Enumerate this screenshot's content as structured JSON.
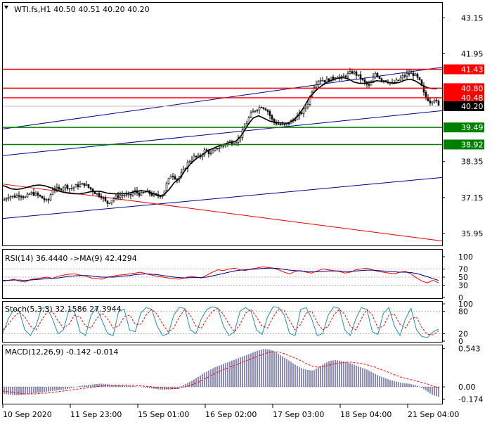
{
  "chart_data": [
    {
      "type": "candlestick",
      "title": "WTI.fs,H1  40.50 40.51 40.20 40.20",
      "quote": {
        "symbol": "WTI.fs,H1",
        "open": 40.5,
        "high": 40.51,
        "low": 40.2,
        "close": 40.2
      },
      "yticks": [
        "43.15",
        "41.95",
        "38.35",
        "37.15",
        "35.95"
      ],
      "ytick_values": [
        43.15,
        41.95,
        38.35,
        37.15,
        35.95
      ],
      "ylim": [
        35.55,
        43.65
      ],
      "levels": [
        {
          "label": "41.43",
          "value": 41.43,
          "color": "#ff0000",
          "kind": "resistance"
        },
        {
          "label": "40.80",
          "value": 40.8,
          "color": "#ff0000",
          "kind": "resistance"
        },
        {
          "label": "40.48",
          "value": 40.48,
          "color": "#ff0000",
          "kind": "resistance"
        },
        {
          "label": "40.20",
          "value": 40.2,
          "color": "#000000",
          "kind": "current"
        },
        {
          "label": "39.49",
          "value": 39.49,
          "color": "#008000",
          "kind": "support"
        },
        {
          "label": "38.92",
          "value": 38.92,
          "color": "#008000",
          "kind": "support"
        }
      ],
      "ma_anchors": [
        [
          0,
          37.58
        ],
        [
          8,
          37.52
        ],
        [
          16,
          37.44
        ],
        [
          24,
          37.42
        ],
        [
          32,
          37.45
        ],
        [
          40,
          37.5
        ],
        [
          48,
          37.55
        ],
        [
          56,
          37.57
        ],
        [
          64,
          37.54
        ],
        [
          72,
          37.48
        ],
        [
          80,
          37.4
        ],
        [
          88,
          37.34
        ],
        [
          96,
          37.3
        ],
        [
          104,
          37.28
        ],
        [
          112,
          37.27
        ],
        [
          120,
          37.3
        ],
        [
          128,
          37.34
        ],
        [
          136,
          37.36
        ],
        [
          144,
          37.35
        ],
        [
          152,
          37.3
        ],
        [
          160,
          37.28
        ],
        [
          168,
          37.27
        ],
        [
          176,
          37.28
        ],
        [
          184,
          37.3
        ],
        [
          192,
          37.35
        ],
        [
          200,
          37.38
        ],
        [
          208,
          37.36
        ],
        [
          216,
          37.3
        ],
        [
          224,
          37.22
        ],
        [
          232,
          37.22
        ],
        [
          240,
          37.4
        ],
        [
          248,
          37.65
        ],
        [
          256,
          37.8
        ],
        [
          264,
          38.08
        ],
        [
          272,
          38.3
        ],
        [
          280,
          38.46
        ],
        [
          288,
          38.58
        ],
        [
          296,
          38.72
        ],
        [
          304,
          38.8
        ],
        [
          312,
          38.88
        ],
        [
          320,
          38.94
        ],
        [
          328,
          38.99
        ],
        [
          336,
          39.04
        ],
        [
          344,
          39.24
        ],
        [
          352,
          39.55
        ],
        [
          360,
          39.8
        ],
        [
          368,
          39.88
        ],
        [
          376,
          39.79
        ],
        [
          384,
          39.7
        ],
        [
          392,
          39.65
        ],
        [
          400,
          39.64
        ],
        [
          408,
          39.63
        ],
        [
          416,
          39.7
        ],
        [
          424,
          39.88
        ],
        [
          432,
          40.15
        ],
        [
          440,
          40.48
        ],
        [
          448,
          40.69
        ],
        [
          456,
          40.85
        ],
        [
          464,
          40.98
        ],
        [
          472,
          41.07
        ],
        [
          480,
          41.13
        ],
        [
          488,
          41.15
        ],
        [
          496,
          41.11
        ],
        [
          504,
          41.0
        ],
        [
          512,
          40.96
        ],
        [
          520,
          40.97
        ],
        [
          528,
          41.0
        ],
        [
          536,
          41.05
        ],
        [
          544,
          41.03
        ],
        [
          552,
          41.0
        ],
        [
          560,
          40.96
        ],
        [
          568,
          40.99
        ],
        [
          576,
          41.07
        ],
        [
          584,
          41.1
        ],
        [
          592,
          41.03
        ],
        [
          600,
          40.91
        ],
        [
          608,
          40.82
        ],
        [
          616,
          40.78
        ]
      ],
      "price_anchors": [
        [
          0,
          37.05
        ],
        [
          6,
          37.08
        ],
        [
          12,
          37.2
        ],
        [
          20,
          37.18
        ],
        [
          28,
          37.25
        ],
        [
          36,
          37.15
        ],
        [
          44,
          37.3
        ],
        [
          52,
          37.25
        ],
        [
          62,
          37.1
        ],
        [
          68,
          37.0
        ],
        [
          76,
          37.5
        ],
        [
          84,
          37.4
        ],
        [
          92,
          37.55
        ],
        [
          100,
          37.45
        ],
        [
          110,
          37.55
        ],
        [
          120,
          37.6
        ],
        [
          128,
          37.45
        ],
        [
          136,
          37.3
        ],
        [
          144,
          37.2
        ],
        [
          152,
          36.95
        ],
        [
          160,
          37.1
        ],
        [
          168,
          37.2
        ],
        [
          176,
          37.25
        ],
        [
          184,
          37.2
        ],
        [
          192,
          37.35
        ],
        [
          200,
          37.25
        ],
        [
          208,
          37.35
        ],
        [
          216,
          37.25
        ],
        [
          224,
          37.2
        ],
        [
          232,
          37.25
        ],
        [
          236,
          37.55
        ],
        [
          244,
          37.95
        ],
        [
          252,
          37.75
        ],
        [
          260,
          38.0
        ],
        [
          268,
          38.35
        ],
        [
          276,
          38.5
        ],
        [
          284,
          38.5
        ],
        [
          292,
          38.75
        ],
        [
          300,
          38.6
        ],
        [
          308,
          38.8
        ],
        [
          316,
          38.85
        ],
        [
          324,
          39.0
        ],
        [
          332,
          38.98
        ],
        [
          340,
          39.1
        ],
        [
          348,
          39.5
        ],
        [
          356,
          39.9
        ],
        [
          364,
          40.1
        ],
        [
          372,
          40.2
        ],
        [
          380,
          40.08
        ],
        [
          388,
          39.7
        ],
        [
          396,
          39.6
        ],
        [
          404,
          39.55
        ],
        [
          412,
          39.65
        ],
        [
          420,
          39.8
        ],
        [
          430,
          40.0
        ],
        [
          438,
          40.3
        ],
        [
          446,
          40.85
        ],
        [
          454,
          41.1
        ],
        [
          462,
          41.05
        ],
        [
          470,
          41.1
        ],
        [
          478,
          41.2
        ],
        [
          486,
          41.15
        ],
        [
          494,
          41.25
        ],
        [
          502,
          41.35
        ],
        [
          510,
          41.2
        ],
        [
          518,
          41.0
        ],
        [
          526,
          40.85
        ],
        [
          534,
          41.3
        ],
        [
          542,
          41.1
        ],
        [
          550,
          41.05
        ],
        [
          558,
          40.95
        ],
        [
          566,
          41.05
        ],
        [
          574,
          41.2
        ],
        [
          582,
          41.3
        ],
        [
          590,
          41.25
        ],
        [
          598,
          41.0
        ],
        [
          604,
          40.55
        ],
        [
          612,
          40.35
        ],
        [
          618,
          40.45
        ],
        [
          624,
          40.2
        ]
      ]
    },
    {
      "type": "line",
      "title": "RSI(14) 36.4440  ->MA(9) 42.4294",
      "yticks": [
        "100",
        "70",
        "50",
        "30",
        "0"
      ],
      "ytick_values": [
        100,
        70,
        50,
        30,
        0
      ],
      "ylim": [
        0,
        100
      ],
      "series": [
        {
          "color": "#ff0000",
          "values": [
            40,
            42,
            45,
            40,
            38,
            44,
            46,
            48,
            50,
            47,
            52,
            55,
            57,
            58,
            55,
            53,
            48,
            46,
            45,
            50,
            52,
            55,
            56,
            58,
            60,
            62,
            58,
            55,
            52,
            50,
            48,
            46,
            45,
            48,
            52,
            50,
            48,
            55,
            62,
            68,
            66,
            70,
            72,
            68,
            66,
            70,
            72,
            75,
            74,
            72,
            68,
            62,
            58,
            64,
            66,
            62,
            60,
            65,
            70,
            68,
            66,
            64,
            60,
            62,
            68,
            70,
            72,
            68,
            64,
            62,
            60,
            58,
            62,
            64,
            58,
            48,
            40,
            36,
            42,
            36
          ]
        },
        {
          "color": "#000080",
          "values": [
            42,
            42,
            43,
            43,
            42,
            43,
            44,
            45,
            46,
            47,
            48,
            50,
            52,
            53,
            54,
            54,
            53,
            51,
            50,
            50,
            50,
            51,
            53,
            54,
            56,
            57,
            58,
            57,
            56,
            54,
            52,
            50,
            49,
            48,
            49,
            49,
            49,
            50,
            53,
            56,
            59,
            62,
            65,
            67,
            68,
            69,
            70,
            71,
            72,
            72,
            71,
            69,
            67,
            66,
            65,
            64,
            63,
            63,
            64,
            65,
            65,
            65,
            64,
            64,
            65,
            66,
            67,
            67,
            66,
            65,
            64,
            63,
            62,
            62,
            61,
            59,
            55,
            51,
            46,
            42
          ]
        }
      ]
    },
    {
      "type": "line",
      "title": "Stoch(5,3,3) 32.1586 27.3944",
      "yticks": [
        "100",
        "80",
        "20",
        "0"
      ],
      "ytick_values": [
        100,
        80,
        20,
        0
      ],
      "ylim": [
        0,
        100
      ],
      "series": [
        {
          "color": "#1e90aa",
          "values": [
            20,
            60,
            85,
            80,
            30,
            15,
            40,
            88,
            90,
            60,
            20,
            30,
            85,
            80,
            25,
            15,
            70,
            90,
            55,
            20,
            15,
            80,
            85,
            30,
            25,
            75,
            90,
            85,
            40,
            15,
            20,
            70,
            90,
            88,
            30,
            20,
            60,
            85,
            92,
            88,
            40,
            15,
            25,
            80,
            90,
            80,
            30,
            18,
            65,
            92,
            90,
            70,
            20,
            15,
            85,
            90,
            60,
            15,
            20,
            70,
            92,
            88,
            30,
            15,
            60,
            90,
            85,
            25,
            18,
            75,
            90,
            40,
            15,
            60,
            88,
            30,
            12,
            10,
            25,
            32
          ]
        },
        {
          "color": "#ff0000",
          "values": [
            30,
            45,
            65,
            78,
            65,
            40,
            30,
            55,
            78,
            80,
            55,
            35,
            45,
            70,
            65,
            40,
            35,
            60,
            75,
            60,
            35,
            40,
            65,
            70,
            45,
            45,
            70,
            85,
            72,
            45,
            25,
            35,
            65,
            85,
            70,
            40,
            35,
            60,
            80,
            88,
            72,
            45,
            25,
            45,
            75,
            85,
            65,
            40,
            35,
            65,
            85,
            82,
            55,
            30,
            45,
            75,
            80,
            50,
            30,
            40,
            70,
            85,
            72,
            40,
            30,
            60,
            85,
            70,
            35,
            40,
            70,
            72,
            45,
            35,
            60,
            65,
            35,
            18,
            17,
            27
          ]
        }
      ]
    },
    {
      "type": "bar",
      "title": "MACD(12,26,9) -0.142 -0.014",
      "yticks": [
        "0.543",
        "0.00",
        "-0.174"
      ],
      "ytick_values": [
        0.543,
        0.0,
        -0.174
      ],
      "ylim": [
        -0.23,
        0.56
      ],
      "histogram": [
        -0.1,
        -0.11,
        -0.12,
        -0.12,
        -0.11,
        -0.1,
        -0.09,
        -0.08,
        -0.07,
        -0.06,
        -0.05,
        -0.04,
        -0.03,
        -0.01,
        0.01,
        0.02,
        0.03,
        0.04,
        0.045,
        0.04,
        0.03,
        0.025,
        0.02,
        0.015,
        0.01,
        0.0,
        -0.01,
        -0.02,
        -0.03,
        -0.04,
        -0.04,
        -0.035,
        -0.03,
        0.02,
        0.06,
        0.1,
        0.15,
        0.2,
        0.24,
        0.28,
        0.31,
        0.34,
        0.37,
        0.4,
        0.43,
        0.46,
        0.49,
        0.52,
        0.54,
        0.53,
        0.5,
        0.45,
        0.4,
        0.35,
        0.3,
        0.26,
        0.24,
        0.23,
        0.28,
        0.33,
        0.37,
        0.38,
        0.37,
        0.35,
        0.33,
        0.3,
        0.27,
        0.24,
        0.2,
        0.16,
        0.13,
        0.1,
        0.08,
        0.06,
        0.05,
        0.04,
        0.02,
        -0.02,
        -0.07,
        -0.12,
        -0.142
      ],
      "signal": [
        -0.06,
        -0.07,
        -0.08,
        -0.09,
        -0.1,
        -0.1,
        -0.1,
        -0.09,
        -0.09,
        -0.08,
        -0.07,
        -0.06,
        -0.05,
        -0.04,
        -0.03,
        -0.02,
        -0.01,
        0.0,
        0.01,
        0.02,
        0.025,
        0.025,
        0.025,
        0.02,
        0.02,
        0.015,
        0.01,
        0.005,
        -0.005,
        -0.015,
        -0.02,
        -0.025,
        -0.025,
        -0.01,
        0.01,
        0.04,
        0.07,
        0.11,
        0.15,
        0.19,
        0.23,
        0.26,
        0.29,
        0.32,
        0.35,
        0.38,
        0.41,
        0.44,
        0.47,
        0.49,
        0.5,
        0.49,
        0.46,
        0.43,
        0.4,
        0.36,
        0.32,
        0.29,
        0.28,
        0.29,
        0.31,
        0.33,
        0.34,
        0.35,
        0.35,
        0.34,
        0.33,
        0.31,
        0.29,
        0.26,
        0.23,
        0.2,
        0.17,
        0.14,
        0.12,
        0.1,
        0.08,
        0.06,
        0.04,
        0.01,
        -0.014
      ]
    }
  ],
  "x_labels": [
    "10 Sep 2020",
    "11 Sep 23:00",
    "15 Sep 01:00",
    "16 Sep 02:00",
    "17 Sep 03:00",
    "18 Sep 04:00",
    "21 Sep 04:00"
  ],
  "colors": {
    "up": "#000000",
    "down": "#000000",
    "ma": "#000000",
    "channel": "#00008b",
    "trend_red": "#e00000",
    "support": "#008000",
    "resistance": "#ff0000"
  }
}
